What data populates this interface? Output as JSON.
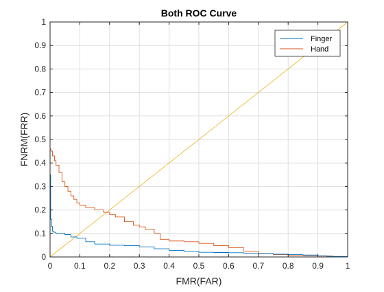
{
  "chart_data": {
    "type": "line",
    "title": "Both ROC Curve",
    "xlabel": "FMR(FAR)",
    "ylabel": "FNRM(FRR)",
    "xlim": [
      0,
      1
    ],
    "ylim": [
      0,
      1
    ],
    "xticks": [
      "0",
      "0.1",
      "0.2",
      "0.3",
      "0.4",
      "0.5",
      "0.6",
      "0.7",
      "0.8",
      "0.9",
      "1"
    ],
    "yticks": [
      "0",
      "0.1",
      "0.2",
      "0.3",
      "0.4",
      "0.5",
      "0.6",
      "0.7",
      "0.8",
      "0.9",
      "1"
    ],
    "grid": true,
    "legend_position": "top-right",
    "series": [
      {
        "name": "Finger",
        "color": "#0072BD",
        "x": [
          0,
          0,
          0.002,
          0.005,
          0.008,
          0.012,
          0.02,
          0.03,
          0.05,
          0.07,
          0.09,
          0.1,
          0.12,
          0.15,
          0.2,
          0.25,
          0.3,
          0.35,
          0.4,
          0.45,
          0.5,
          0.55,
          0.6,
          0.65,
          0.7,
          0.75,
          0.8,
          0.85,
          0.9,
          0.93,
          0.95,
          1
        ],
        "y": [
          0.46,
          0.35,
          0.16,
          0.13,
          0.11,
          0.105,
          0.1,
          0.1,
          0.095,
          0.085,
          0.08,
          0.08,
          0.065,
          0.055,
          0.05,
          0.048,
          0.043,
          0.035,
          0.028,
          0.024,
          0.02,
          0.019,
          0.018,
          0.016,
          0.014,
          0.012,
          0.01,
          0.008,
          0.005,
          0.003,
          0.002,
          0.002
        ]
      },
      {
        "name": "Hand",
        "color": "#D95319",
        "x": [
          0,
          0.003,
          0.008,
          0.015,
          0.02,
          0.03,
          0.04,
          0.05,
          0.06,
          0.07,
          0.08,
          0.09,
          0.1,
          0.12,
          0.15,
          0.18,
          0.2,
          0.22,
          0.25,
          0.28,
          0.3,
          0.32,
          0.35,
          0.37,
          0.4,
          0.45,
          0.5,
          0.55,
          0.6,
          0.65,
          0.7,
          0.75,
          0.8,
          0.85,
          0.9,
          0.95,
          1
        ],
        "y": [
          0.46,
          0.45,
          0.43,
          0.41,
          0.39,
          0.36,
          0.32,
          0.3,
          0.28,
          0.26,
          0.245,
          0.23,
          0.22,
          0.21,
          0.2,
          0.19,
          0.18,
          0.17,
          0.15,
          0.135,
          0.128,
          0.118,
          0.1,
          0.075,
          0.068,
          0.065,
          0.058,
          0.048,
          0.04,
          0.025,
          0.013,
          0.01,
          0.008,
          0.006,
          0.004,
          0.002,
          0
        ]
      },
      {
        "color": "#EDB120",
        "x": [
          0,
          1
        ],
        "y": [
          0,
          1
        ]
      }
    ],
    "extra_segments": [
      {
        "color": "#EDB120",
        "x": [
          0,
          0
        ],
        "y": [
          0,
          1
        ]
      }
    ]
  }
}
